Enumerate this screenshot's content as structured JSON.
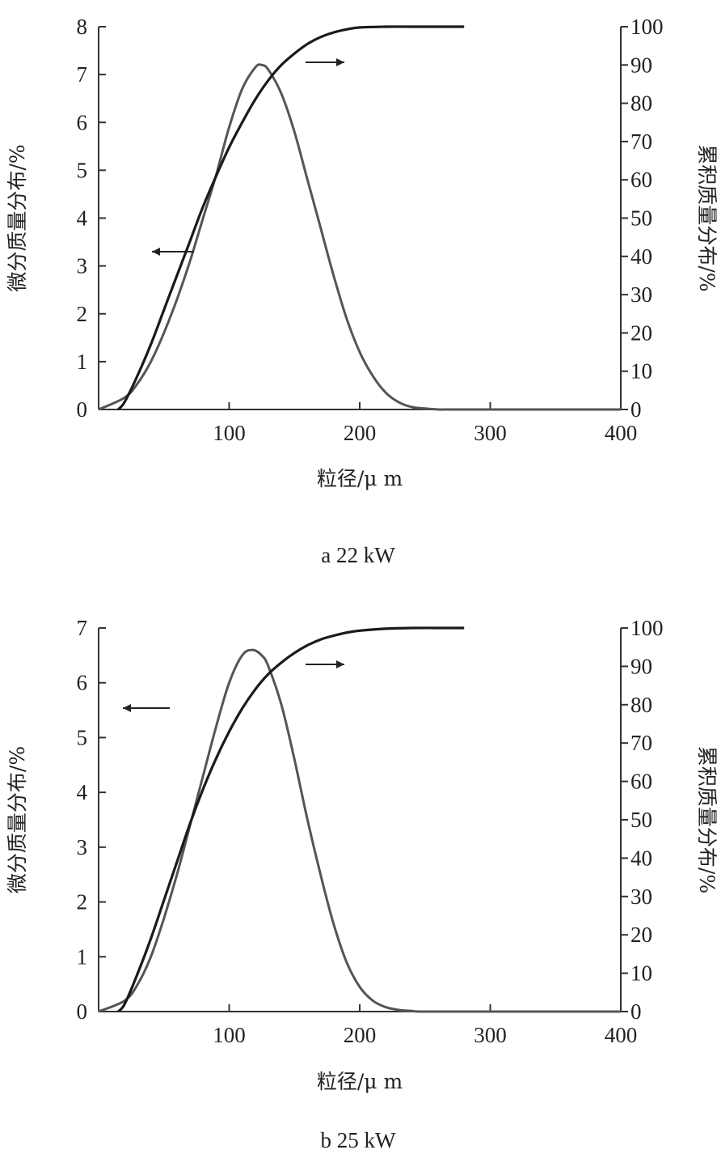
{
  "chart_data": [
    {
      "type": "line",
      "caption": "a 22 kW",
      "xlabel": "粒径/μ m",
      "ylabel_left": "微分质量分布/%",
      "ylabel_right": "累积质量分布/%",
      "xlim": [
        0,
        400
      ],
      "ylim_left": [
        0,
        8
      ],
      "ylim_right": [
        0,
        100
      ],
      "x_ticks": [
        "100",
        "200",
        "300",
        "400"
      ],
      "y_left_ticks": [
        "0",
        "1",
        "2",
        "3",
        "4",
        "5",
        "6",
        "7",
        "8"
      ],
      "y_right_ticks": [
        "0",
        "10",
        "20",
        "30",
        "40",
        "50",
        "60",
        "70",
        "80",
        "90",
        "100"
      ],
      "grid": false,
      "annotations": [
        "← (微分, left axis)",
        "→ (累积, right axis)"
      ],
      "series": [
        {
          "axis": "left",
          "x": [
            0,
            20,
            30,
            40,
            50,
            60,
            70,
            80,
            90,
            100,
            110,
            120,
            125,
            130,
            140,
            150,
            160,
            170,
            180,
            190,
            200,
            210,
            220,
            230,
            240,
            250,
            260,
            270,
            300,
            400
          ],
          "y": [
            0,
            0.25,
            0.55,
            1.0,
            1.6,
            2.3,
            3.1,
            4.0,
            4.9,
            5.9,
            6.7,
            7.15,
            7.2,
            7.1,
            6.6,
            5.8,
            4.8,
            3.8,
            2.8,
            1.9,
            1.2,
            0.7,
            0.35,
            0.15,
            0.05,
            0.02,
            0.0,
            0,
            0,
            0
          ]
        },
        {
          "axis": "right",
          "x": [
            15,
            20,
            30,
            40,
            50,
            60,
            70,
            80,
            90,
            100,
            110,
            120,
            130,
            140,
            150,
            160,
            170,
            180,
            190,
            200,
            220,
            240,
            260,
            280
          ],
          "y": [
            0,
            2,
            9,
            17,
            26,
            35,
            44,
            53,
            61,
            68.5,
            75,
            81,
            86,
            90,
            93,
            95.5,
            97.3,
            98.5,
            99.3,
            99.8,
            100,
            100,
            100,
            100
          ]
        }
      ]
    },
    {
      "type": "line",
      "caption": "b 25 kW",
      "xlabel": "粒径/μ m",
      "ylabel_left": "微分质量分布/%",
      "ylabel_right": "累积质量分布/%",
      "xlim": [
        0,
        400
      ],
      "ylim_left": [
        0,
        7
      ],
      "ylim_right": [
        0,
        100
      ],
      "x_ticks": [
        "100",
        "200",
        "300",
        "400"
      ],
      "y_left_ticks": [
        "0",
        "1",
        "2",
        "3",
        "4",
        "5",
        "6",
        "7"
      ],
      "y_right_ticks": [
        "0",
        "10",
        "20",
        "30",
        "40",
        "50",
        "60",
        "70",
        "80",
        "90",
        "100"
      ],
      "grid": false,
      "annotations": [
        "← (微分, left axis)",
        "→ (累积, right axis)"
      ],
      "series": [
        {
          "axis": "left",
          "x": [
            0,
            20,
            30,
            40,
            50,
            60,
            70,
            80,
            90,
            100,
            110,
            118,
            125,
            130,
            140,
            150,
            160,
            170,
            180,
            190,
            200,
            210,
            220,
            230,
            240,
            250,
            300,
            400
          ],
          "y": [
            0,
            0.2,
            0.5,
            1.0,
            1.7,
            2.5,
            3.4,
            4.3,
            5.2,
            6.0,
            6.5,
            6.6,
            6.5,
            6.3,
            5.6,
            4.6,
            3.5,
            2.5,
            1.6,
            0.9,
            0.45,
            0.2,
            0.08,
            0.03,
            0.01,
            0,
            0,
            0
          ]
        },
        {
          "axis": "right",
          "x": [
            15,
            20,
            30,
            40,
            50,
            60,
            70,
            80,
            90,
            100,
            110,
            120,
            130,
            140,
            150,
            160,
            170,
            180,
            190,
            200,
            220,
            240,
            260,
            280
          ],
          "y": [
            0,
            2,
            10,
            19,
            29,
            39,
            49,
            58,
            66,
            73,
            79,
            84,
            88,
            91,
            93.5,
            95.5,
            97,
            98,
            98.8,
            99.3,
            99.8,
            100,
            100,
            100
          ]
        }
      ]
    }
  ]
}
